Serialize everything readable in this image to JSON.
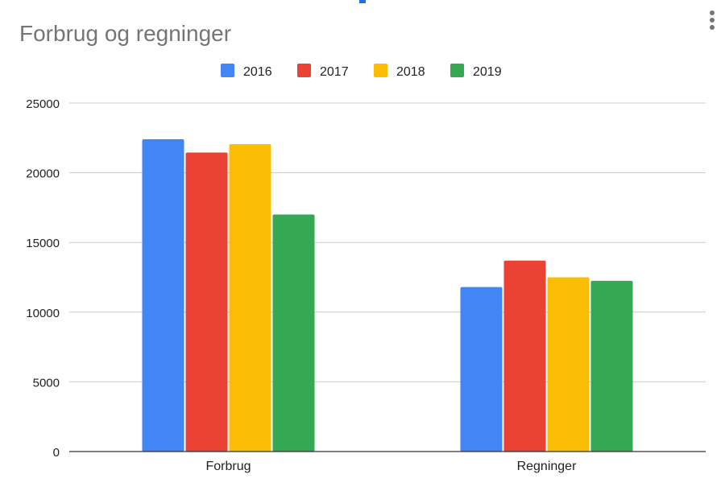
{
  "chart_data": {
    "type": "bar",
    "title": "Forbrug og regninger",
    "categories": [
      "Forbrug",
      "Regninger"
    ],
    "series": [
      {
        "name": "2016",
        "color": "#4285f4",
        "values": [
          22400,
          11800
        ]
      },
      {
        "name": "2017",
        "color": "#ea4335",
        "values": [
          21450,
          13700
        ]
      },
      {
        "name": "2018",
        "color": "#fbbc04",
        "values": [
          22050,
          12500
        ]
      },
      {
        "name": "2019",
        "color": "#34a853",
        "values": [
          17000,
          12250
        ]
      }
    ],
    "xlabel": "",
    "ylabel": "",
    "ylim": [
      0,
      25000
    ],
    "yticks": [
      0,
      5000,
      10000,
      15000,
      20000,
      25000
    ],
    "grid": true,
    "legend_position": "top"
  },
  "colors": {
    "title": "#757575",
    "axis_text": "#222222",
    "gridline": "#cccccc",
    "baseline": "#333333"
  },
  "icons": {
    "menu": "more-vert-icon"
  }
}
